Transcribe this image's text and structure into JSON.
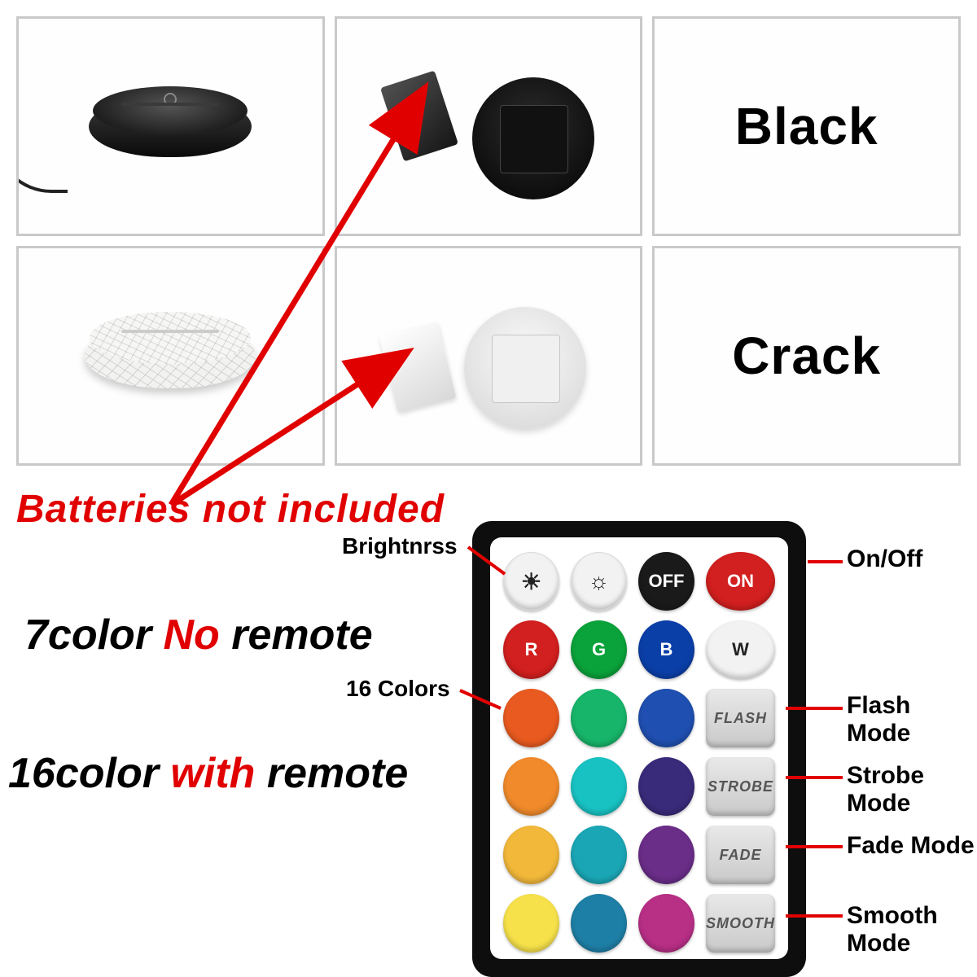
{
  "labels": {
    "black": "Black",
    "crack": "Crack"
  },
  "warning": "Batteries  not included",
  "options": {
    "seven_pre": "7color ",
    "seven_no": "No",
    "seven_post": " remote",
    "sixteen_pre": "16color ",
    "sixteen_with": "with",
    "sixteen_post": " remote"
  },
  "callouts": {
    "brightness": "Brightnrss",
    "onoff": "On/Off",
    "sixteen_colors": "16 Colors",
    "flash": "Flash Mode",
    "strobe": "Strobe Mode",
    "fade": "Fade Mode",
    "smooth": "Smooth Mode"
  },
  "remote": {
    "row1": [
      {
        "type": "white",
        "glyph": "☀"
      },
      {
        "type": "white",
        "glyph": "☼"
      },
      {
        "type": "black",
        "text": "OFF"
      },
      {
        "type": "red",
        "text": "ON"
      }
    ],
    "row2_letters": [
      "R",
      "G",
      "B",
      "W"
    ],
    "row2_colors": [
      "#d21f1f",
      "#0aa23a",
      "#0b3fa8",
      "#f2f2f2"
    ],
    "row2_textcolors": [
      "#fff",
      "#fff",
      "#fff",
      "#222"
    ],
    "color_rows": [
      [
        "#e85a1f",
        "#17b56a",
        "#1f4fb0"
      ],
      [
        "#f08a2b",
        "#18c2c2",
        "#3a2a7a"
      ],
      [
        "#f2b83a",
        "#1aa6b5",
        "#6a2d88"
      ],
      [
        "#f6e14a",
        "#1e7fa6",
        "#b82f86"
      ]
    ],
    "modes": [
      "FLASH",
      "STROBE",
      "FADE",
      "SMOOTH"
    ]
  }
}
